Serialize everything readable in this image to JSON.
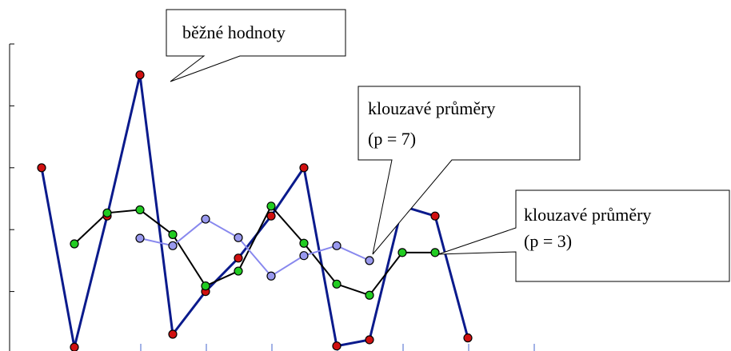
{
  "chart_data": {
    "type": "line",
    "categories": [
      null,
      null,
      null,
      null,
      null,
      null,
      null,
      null,
      null,
      null,
      null,
      null,
      null,
      null
    ],
    "ylim": [
      0,
      5
    ],
    "yticks": [
      1,
      2,
      3,
      4,
      5
    ],
    "series": [
      {
        "color": "#0a1a8c",
        "marker": "#d01010",
        "values": [
          3.0,
          0.1,
          2.22,
          4.5,
          0.31,
          1.0,
          1.54,
          2.22,
          3.0,
          0.12,
          0.22,
          2.38,
          2.22,
          0.25
        ]
      },
      {
        "color": "#000000",
        "marker": "#22cc22",
        "values": [
          null,
          1.77,
          2.27,
          2.32,
          1.92,
          1.09,
          1.33,
          2.38,
          1.78,
          1.12,
          0.94,
          1.63,
          1.63,
          null
        ]
      },
      {
        "color": "#8888ee",
        "marker": "#9999ee",
        "values": [
          null,
          null,
          null,
          1.86,
          1.74,
          2.17,
          1.87,
          1.25,
          1.58,
          1.74,
          1.5,
          null,
          null,
          null
        ]
      }
    ],
    "annotations": [
      {
        "lines": [
          "běžné hodnoty"
        ]
      },
      {
        "lines": [
          "klouzavé průměry",
          "(p = 7)"
        ]
      },
      {
        "lines": [
          "klouzavé průměry",
          "(p = 3)"
        ]
      }
    ]
  }
}
